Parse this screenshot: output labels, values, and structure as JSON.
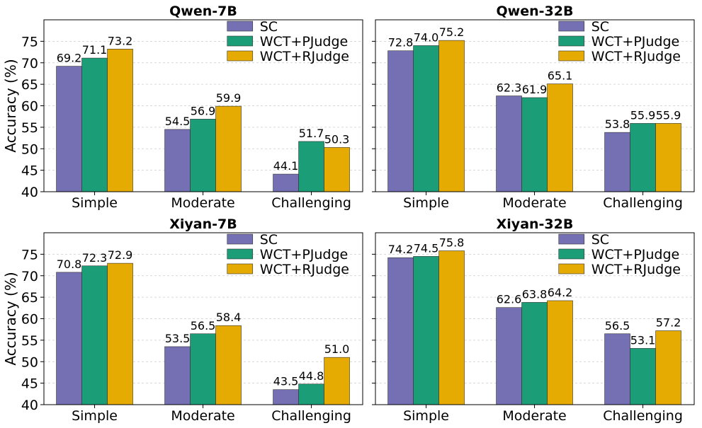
{
  "chart_data": [
    {
      "type": "bar",
      "title": "Qwen-7B",
      "ylabel": "Accuracy (%)",
      "xlabel": "",
      "ylim": [
        40,
        80
      ],
      "yticks": [
        40,
        45,
        50,
        55,
        60,
        65,
        70,
        75
      ],
      "categories": [
        "Simple",
        "Moderate",
        "Challenging"
      ],
      "legend_position": "top-right",
      "series": [
        {
          "name": "SC",
          "color": "#7570b3",
          "values": [
            69.2,
            54.5,
            44.1
          ],
          "labels": [
            "69.2",
            "54.5",
            "44.1"
          ]
        },
        {
          "name": "WCT+PJudge",
          "color": "#1b9e77",
          "values": [
            71.1,
            56.9,
            51.7
          ],
          "labels": [
            "71.1",
            "56.9",
            "51.7"
          ]
        },
        {
          "name": "WCT+RJudge",
          "color": "#e6ab02",
          "values": [
            73.2,
            59.9,
            50.3
          ],
          "labels": [
            "73.2",
            "59.9",
            "50.3"
          ]
        }
      ]
    },
    {
      "type": "bar",
      "title": "Qwen-32B",
      "ylabel": "",
      "xlabel": "",
      "ylim": [
        40,
        80
      ],
      "yticks": [
        40,
        45,
        50,
        55,
        60,
        65,
        70,
        75
      ],
      "categories": [
        "Simple",
        "Moderate",
        "Challenging"
      ],
      "legend_position": "top-right",
      "series": [
        {
          "name": "SC",
          "color": "#7570b3",
          "values": [
            72.8,
            62.3,
            53.8
          ],
          "labels": [
            "72.8",
            "62.3",
            "53.8"
          ]
        },
        {
          "name": "WCT+PJudge",
          "color": "#1b9e77",
          "values": [
            74.0,
            61.9,
            55.9
          ],
          "labels": [
            "74.0",
            "61.9",
            "55.9"
          ]
        },
        {
          "name": "WCT+RJudge",
          "color": "#e6ab02",
          "values": [
            75.2,
            65.1,
            55.9
          ],
          "labels": [
            "75.2",
            "65.1",
            "55.9"
          ]
        }
      ]
    },
    {
      "type": "bar",
      "title": "Xiyan-7B",
      "ylabel": "Accuracy (%)",
      "xlabel": "",
      "ylim": [
        40,
        80
      ],
      "yticks": [
        40,
        45,
        50,
        55,
        60,
        65,
        70,
        75
      ],
      "categories": [
        "Simple",
        "Moderate",
        "Challenging"
      ],
      "legend_position": "top-right",
      "series": [
        {
          "name": "SC",
          "color": "#7570b3",
          "values": [
            70.8,
            53.5,
            43.5
          ],
          "labels": [
            "70.8",
            "53.5",
            "43.5"
          ]
        },
        {
          "name": "WCT+PJudge",
          "color": "#1b9e77",
          "values": [
            72.3,
            56.5,
            44.8
          ],
          "labels": [
            "72.3",
            "56.5",
            "44.8"
          ]
        },
        {
          "name": "WCT+RJudge",
          "color": "#e6ab02",
          "values": [
            72.9,
            58.4,
            51.0
          ],
          "labels": [
            "72.9",
            "58.4",
            "51.0"
          ]
        }
      ]
    },
    {
      "type": "bar",
      "title": "Xiyan-32B",
      "ylabel": "",
      "xlabel": "",
      "ylim": [
        40,
        80
      ],
      "yticks": [
        40,
        45,
        50,
        55,
        60,
        65,
        70,
        75
      ],
      "categories": [
        "Simple",
        "Moderate",
        "Challenging"
      ],
      "legend_position": "top-right",
      "series": [
        {
          "name": "SC",
          "color": "#7570b3",
          "values": [
            74.2,
            62.6,
            56.5
          ],
          "labels": [
            "74.2",
            "62.6",
            "56.5"
          ]
        },
        {
          "name": "WCT+PJudge",
          "color": "#1b9e77",
          "values": [
            74.5,
            63.8,
            53.1
          ],
          "labels": [
            "74.5",
            "63.8",
            "53.1"
          ]
        },
        {
          "name": "WCT+RJudge",
          "color": "#e6ab02",
          "values": [
            75.8,
            64.2,
            57.2
          ],
          "labels": [
            "75.8",
            "64.2",
            "57.2"
          ]
        }
      ]
    }
  ]
}
